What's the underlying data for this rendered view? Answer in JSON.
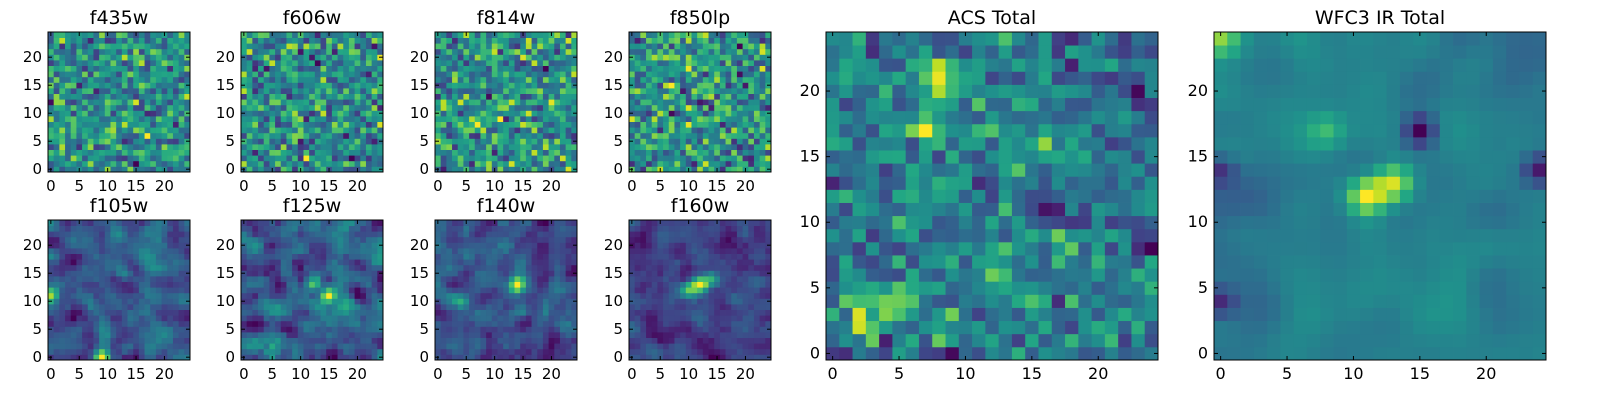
{
  "chart_data": [
    {
      "type": "heatmap",
      "title": "f435w",
      "colormap": "viridis",
      "grid_size": [
        25,
        25
      ],
      "xlim": [
        -0.5,
        24.5
      ],
      "ylim": [
        -0.5,
        24.5
      ],
      "xticks": [
        0,
        5,
        10,
        15,
        20
      ],
      "yticks": [
        0,
        5,
        10,
        15,
        20
      ],
      "xtick_labels": [
        "0",
        "5",
        "10",
        "15",
        "20"
      ],
      "ytick_labels": [
        "0",
        "5",
        "10",
        "15",
        "20"
      ],
      "seed": 11,
      "smooth": 0,
      "peaks": []
    },
    {
      "type": "heatmap",
      "title": "f606w",
      "colormap": "viridis",
      "grid_size": [
        25,
        25
      ],
      "xlim": [
        -0.5,
        24.5
      ],
      "ylim": [
        -0.5,
        24.5
      ],
      "xticks": [
        0,
        5,
        10,
        15,
        20
      ],
      "yticks": [
        0,
        5,
        10,
        15,
        20
      ],
      "xtick_labels": [
        "0",
        "5",
        "10",
        "15",
        "20"
      ],
      "ytick_labels": [
        "0",
        "5",
        "10",
        "15",
        "20"
      ],
      "seed": 23,
      "smooth": 0,
      "peaks": []
    },
    {
      "type": "heatmap",
      "title": "f814w",
      "colormap": "viridis",
      "grid_size": [
        25,
        25
      ],
      "xlim": [
        -0.5,
        24.5
      ],
      "ylim": [
        -0.5,
        24.5
      ],
      "xticks": [
        0,
        5,
        10,
        15,
        20
      ],
      "yticks": [
        0,
        5,
        10,
        15,
        20
      ],
      "xtick_labels": [
        "0",
        "5",
        "10",
        "15",
        "20"
      ],
      "ytick_labels": [
        "0",
        "5",
        "10",
        "15",
        "20"
      ],
      "seed": 37,
      "smooth": 0,
      "peaks": []
    },
    {
      "type": "heatmap",
      "title": "f850lp",
      "colormap": "viridis",
      "grid_size": [
        25,
        25
      ],
      "xlim": [
        -0.5,
        24.5
      ],
      "ylim": [
        -0.5,
        24.5
      ],
      "xticks": [
        0,
        5,
        10,
        15,
        20
      ],
      "yticks": [
        0,
        5,
        10,
        15,
        20
      ],
      "xtick_labels": [
        "0",
        "5",
        "10",
        "15",
        "20"
      ],
      "ytick_labels": [
        "0",
        "5",
        "10",
        "15",
        "20"
      ],
      "seed": 41,
      "smooth": 0,
      "peaks": []
    },
    {
      "type": "heatmap",
      "title": "f105w",
      "colormap": "viridis",
      "grid_size": [
        25,
        25
      ],
      "xlim": [
        -0.5,
        24.5
      ],
      "ylim": [
        -0.5,
        24.5
      ],
      "xticks": [
        0,
        5,
        10,
        15,
        20
      ],
      "yticks": [
        0,
        5,
        10,
        15,
        20
      ],
      "xtick_labels": [
        "0",
        "5",
        "10",
        "15",
        "20"
      ],
      "ytick_labels": [
        "0",
        "5",
        "10",
        "15",
        "20"
      ],
      "seed": 53,
      "smooth": 1,
      "peaks": [
        [
          0,
          11,
          0.4
        ],
        [
          9,
          0,
          0.6
        ]
      ]
    },
    {
      "type": "heatmap",
      "title": "f125w",
      "colormap": "viridis",
      "grid_size": [
        25,
        25
      ],
      "xlim": [
        -0.5,
        24.5
      ],
      "ylim": [
        -0.5,
        24.5
      ],
      "xticks": [
        0,
        5,
        10,
        15,
        20
      ],
      "yticks": [
        0,
        5,
        10,
        15,
        20
      ],
      "xtick_labels": [
        "0",
        "5",
        "10",
        "15",
        "20"
      ],
      "ytick_labels": [
        "0",
        "5",
        "10",
        "15",
        "20"
      ],
      "seed": 67,
      "smooth": 1,
      "peaks": [
        [
          15,
          11,
          0.4
        ],
        [
          12,
          13,
          0.3
        ]
      ]
    },
    {
      "type": "heatmap",
      "title": "f140w",
      "colormap": "viridis",
      "grid_size": [
        25,
        25
      ],
      "xlim": [
        -0.5,
        24.5
      ],
      "ylim": [
        -0.5,
        24.5
      ],
      "xticks": [
        0,
        5,
        10,
        15,
        20
      ],
      "yticks": [
        0,
        5,
        10,
        15,
        20
      ],
      "xtick_labels": [
        "0",
        "5",
        "10",
        "15",
        "20"
      ],
      "ytick_labels": [
        "0",
        "5",
        "10",
        "15",
        "20"
      ],
      "seed": 79,
      "smooth": 1,
      "peaks": [
        [
          14,
          13,
          0.5
        ],
        [
          4,
          10,
          0.3
        ]
      ]
    },
    {
      "type": "heatmap",
      "title": "f160w",
      "colormap": "viridis",
      "grid_size": [
        25,
        25
      ],
      "xlim": [
        -0.5,
        24.5
      ],
      "ylim": [
        -0.5,
        24.5
      ],
      "xticks": [
        0,
        5,
        10,
        15,
        20
      ],
      "yticks": [
        0,
        5,
        10,
        15,
        20
      ],
      "xtick_labels": [
        "0",
        "5",
        "10",
        "15",
        "20"
      ],
      "ytick_labels": [
        "0",
        "5",
        "10",
        "15",
        "20"
      ],
      "seed": 83,
      "smooth": 1,
      "peaks": [
        [
          12,
          13,
          0.6
        ],
        [
          10,
          12,
          0.5
        ],
        [
          14,
          14,
          0.4
        ]
      ]
    },
    {
      "type": "heatmap",
      "title": "ACS Total",
      "colormap": "viridis",
      "grid_size": [
        25,
        25
      ],
      "xlim": [
        -0.5,
        24.5
      ],
      "ylim": [
        -0.5,
        24.5
      ],
      "xticks": [
        0,
        5,
        10,
        15,
        20
      ],
      "yticks": [
        0,
        5,
        10,
        15,
        20
      ],
      "xtick_labels": [
        "0",
        "5",
        "10",
        "15",
        "20"
      ],
      "ytick_labels": [
        "0",
        "5",
        "10",
        "15",
        "20"
      ],
      "seed": 97,
      "smooth": 0,
      "peaks": [
        [
          8,
          21,
          0.6
        ],
        [
          7,
          17,
          0.5
        ],
        [
          2,
          3,
          0.5
        ],
        [
          5,
          4,
          0.4
        ],
        [
          16,
          15,
          0.3
        ],
        [
          12,
          7,
          0.4
        ],
        [
          17,
          8,
          0.3
        ]
      ],
      "troughs": [
        [
          16,
          11,
          0.6
        ],
        [
          24,
          9,
          0.5
        ],
        [
          23,
          20,
          0.5
        ]
      ]
    },
    {
      "type": "heatmap",
      "title": "WFC3 IR Total",
      "colormap": "viridis",
      "grid_size": [
        25,
        25
      ],
      "xlim": [
        -0.5,
        24.5
      ],
      "ylim": [
        -0.5,
        24.5
      ],
      "xticks": [
        0,
        5,
        10,
        15,
        20
      ],
      "yticks": [
        0,
        5,
        10,
        15,
        20
      ],
      "xtick_labels": [
        "0",
        "5",
        "10",
        "15",
        "20"
      ],
      "ytick_labels": [
        "0",
        "5",
        "10",
        "15",
        "20"
      ],
      "seed": 109,
      "smooth": 2,
      "peaks": [
        [
          11,
          12,
          0.7
        ],
        [
          13,
          13,
          0.6
        ],
        [
          0,
          24,
          0.5
        ],
        [
          8,
          17,
          0.3
        ]
      ],
      "troughs": [
        [
          15,
          17,
          0.6
        ],
        [
          24,
          14,
          0.5
        ],
        [
          0,
          4,
          0.4
        ],
        [
          0,
          14,
          0.4
        ]
      ]
    }
  ]
}
